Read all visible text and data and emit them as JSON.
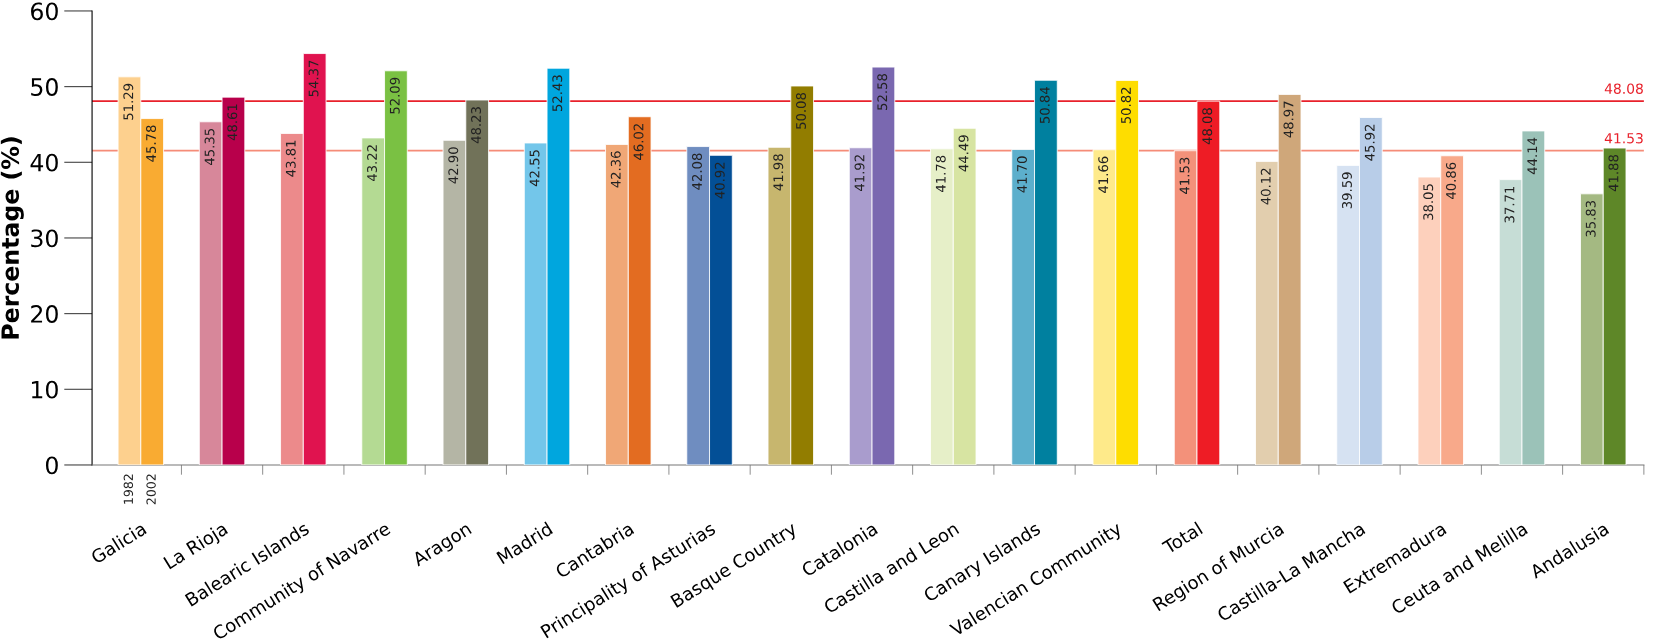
{
  "chart_data": {
    "type": "bar",
    "ylabel": "Percentage (%)",
    "categories": [
      "Galicia",
      "La Rioja",
      "Balearic Islands",
      "Community of Navarre",
      "Aragon",
      "Madrid",
      "Cantabria",
      "Principality of Asturias",
      "Basque Country",
      "Catalonia",
      "Castilla and Leon",
      "Canary Islands",
      "Valencian Community",
      "Total",
      "Region of Murcia",
      "Castilla-La Mancha",
      "Extremadura",
      "Ceuta and Melilla",
      "Andalusia"
    ],
    "series": [
      {
        "name": "1982",
        "values": [
          51.29,
          45.35,
          43.81,
          43.22,
          42.9,
          42.55,
          42.36,
          42.08,
          41.98,
          41.92,
          41.78,
          41.7,
          41.66,
          41.53,
          40.12,
          39.59,
          38.05,
          37.71,
          35.83
        ],
        "value_labels": [
          "51.29",
          "45.35",
          "43.81",
          "43.22",
          "42.90",
          "42.55",
          "42.36",
          "42.08",
          "41.98",
          "41.92",
          "41.78",
          "41.70",
          "41.66",
          "41.53",
          "40.12",
          "39.59",
          "38.05",
          "37.71",
          "35.83"
        ],
        "colors": [
          "#fdd08e",
          "#d7879a",
          "#ec8a8b",
          "#b4da93",
          "#b4b5a5",
          "#73c6ea",
          "#f0a776",
          "#6f8dc0",
          "#c7b66e",
          "#a99ccd",
          "#e6efc8",
          "#5cafcc",
          "#feea8a",
          "#f3917a",
          "#e2ceae",
          "#d6e2f2",
          "#fdd0bc",
          "#c6ddd6",
          "#a4b982"
        ]
      },
      {
        "name": "2002",
        "values": [
          45.78,
          48.61,
          54.37,
          52.09,
          48.23,
          52.43,
          46.02,
          40.92,
          50.08,
          52.58,
          44.49,
          50.84,
          50.82,
          48.08,
          48.97,
          45.92,
          40.86,
          44.14,
          41.88
        ],
        "value_labels": [
          "45.78",
          "48.61",
          "54.37",
          "52.09",
          "48.23",
          "52.43",
          "46.02",
          "40.92",
          "50.08",
          "52.58",
          "44.49",
          "50.84",
          "50.82",
          "48.08",
          "48.97",
          "45.92",
          "40.86",
          "44.14",
          "41.88"
        ],
        "colors": [
          "#f9ab32",
          "#b8004b",
          "#e0134f",
          "#7ac143",
          "#717259",
          "#00a6de",
          "#e36c21",
          "#034f96",
          "#927d00",
          "#7a68b0",
          "#d7e4a2",
          "#00809f",
          "#fedd00",
          "#ee1c25",
          "#cfa77a",
          "#b8cde8",
          "#f8a98a",
          "#9bc2b8",
          "#5e8728"
        ]
      }
    ],
    "ylim": [
      0,
      60
    ],
    "yticks": [
      0,
      10,
      20,
      30,
      40,
      50,
      60
    ],
    "ref_lines": [
      {
        "axis": "y",
        "value": 48.08,
        "label": "48.08",
        "color": "#e8212b"
      },
      {
        "axis": "y",
        "value": 41.53,
        "label": "41.53",
        "color": "#f58c78"
      }
    ],
    "grid": false
  }
}
